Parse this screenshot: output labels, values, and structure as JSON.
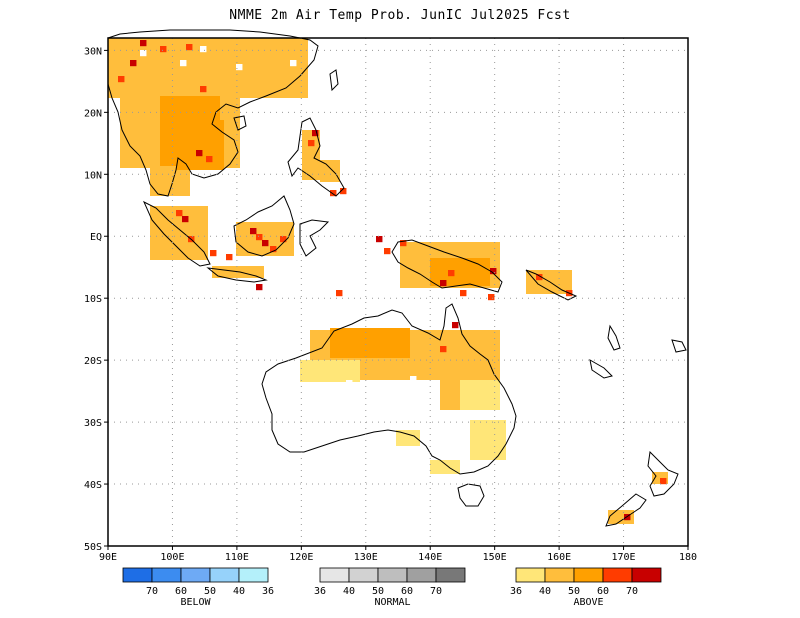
{
  "title": "NMME 2m Air Temp Prob. JunIC  Jul2025 Fcst",
  "map": {
    "lon_range": [
      90,
      180
    ],
    "lat_range": [
      -50,
      32
    ],
    "lat_labels": [
      "30N",
      "20N",
      "10N",
      "EQ",
      "10S",
      "20S",
      "30S",
      "40S",
      "50S"
    ],
    "lon_labels": [
      "90E",
      "100E",
      "110E",
      "120E",
      "130E",
      "140E",
      "150E",
      "160E",
      "170E",
      "180"
    ]
  },
  "legend": {
    "below": {
      "name": "BELOW",
      "ticks": [
        "70",
        "60",
        "50",
        "40",
        "36"
      ],
      "colors": [
        "#1e6ee6",
        "#3c8cf0",
        "#6eaaf5",
        "#96d2fa",
        "#b4f0fa"
      ]
    },
    "normal": {
      "name": "NORMAL",
      "ticks": [
        "36",
        "40",
        "50",
        "60",
        "70"
      ],
      "colors": [
        "#e6e6e6",
        "#d2d2d2",
        "#bebebe",
        "#a0a0a0",
        "#787878"
      ]
    },
    "above": {
      "name": "ABOVE",
      "ticks": [
        "36",
        "40",
        "50",
        "60",
        "70"
      ],
      "colors": [
        "#ffe678",
        "#ffbe3c",
        "#ffa000",
        "#ff3c00",
        "#c80000"
      ]
    }
  }
}
